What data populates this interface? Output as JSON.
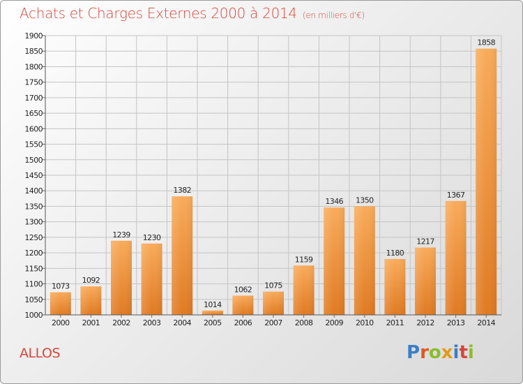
{
  "title": {
    "main": "Achats et Charges Externes 2000 à 2014",
    "unit": "(en milliers d'€)"
  },
  "commune": "ALLOS",
  "logo": [
    "P",
    "r",
    "o",
    "x",
    "i",
    "t",
    "i"
  ],
  "colors": {
    "title": "#d6473a",
    "bar_light": "#f9ab5a",
    "bar_dark": "#e07a22",
    "grid": "#c4c4c4"
  },
  "chart_data": {
    "type": "bar",
    "title": "Achats et Charges Externes 2000 à 2014",
    "subtitle": "(en milliers d'€)",
    "categories": [
      "2000",
      "2001",
      "2002",
      "2003",
      "2004",
      "2005",
      "2006",
      "2007",
      "2008",
      "2009",
      "2010",
      "2011",
      "2012",
      "2013",
      "2014"
    ],
    "values": [
      1073,
      1092,
      1239,
      1230,
      1382,
      1014,
      1062,
      1075,
      1159,
      1346,
      1350,
      1180,
      1217,
      1367,
      1858
    ],
    "ylim": [
      1000,
      1900
    ],
    "ytick_step": 50,
    "grid": true,
    "data_labels": true,
    "xlabel": "",
    "ylabel": ""
  }
}
